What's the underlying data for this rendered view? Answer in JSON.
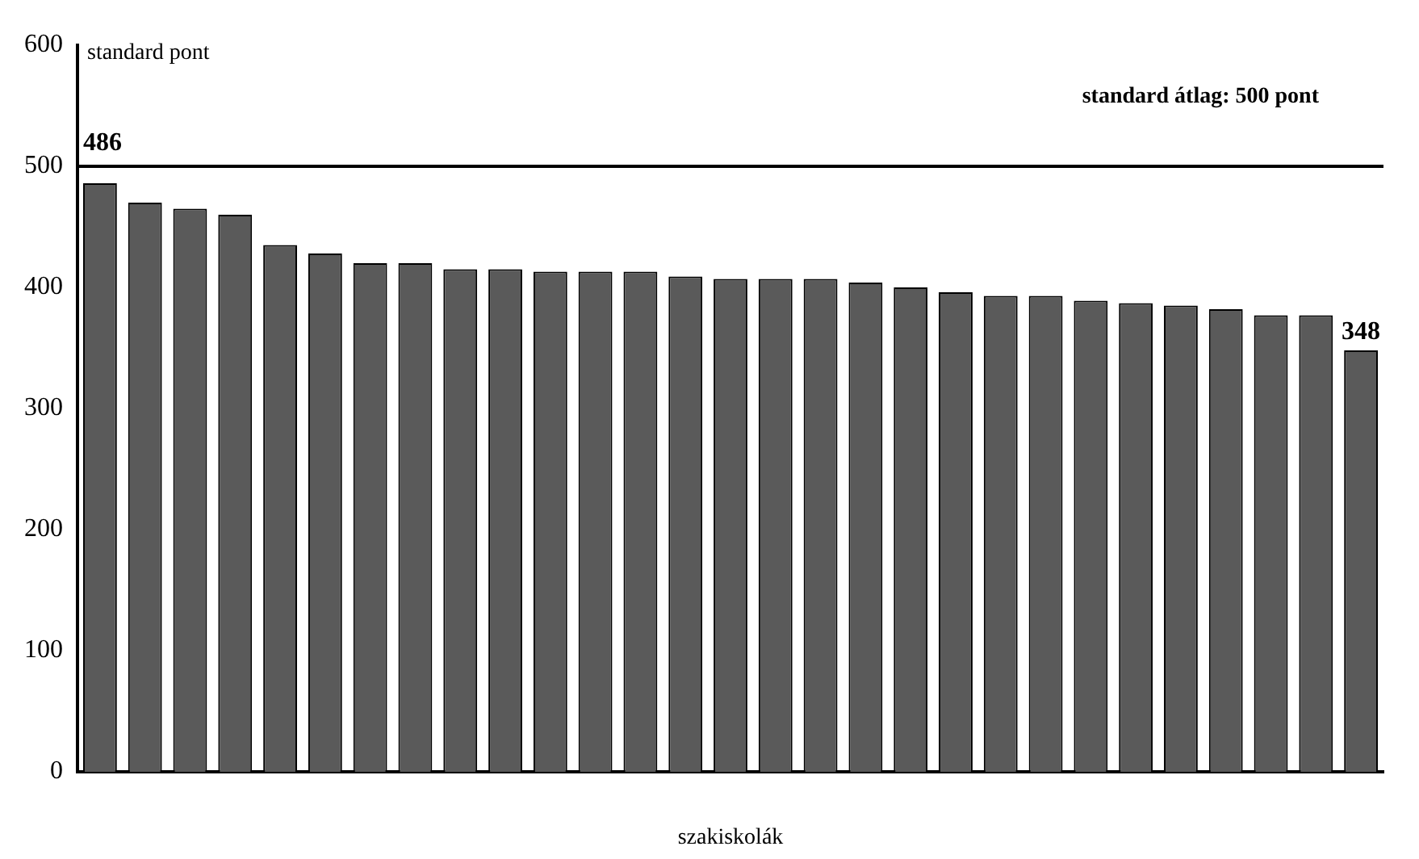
{
  "chart_data": {
    "type": "bar",
    "ylabel": "standard pont",
    "xlabel": "szakiskolák",
    "categories": [
      null,
      null,
      null,
      null,
      null,
      null,
      null,
      null,
      null,
      null,
      null,
      null,
      null,
      null,
      null,
      null,
      null,
      null,
      null,
      null,
      null,
      null,
      null,
      null,
      null,
      null,
      null,
      null,
      null
    ],
    "values": [
      486,
      470,
      465,
      460,
      435,
      428,
      420,
      420,
      415,
      415,
      413,
      413,
      413,
      409,
      407,
      407,
      407,
      404,
      400,
      396,
      393,
      393,
      389,
      387,
      385,
      382,
      377,
      377,
      348
    ],
    "value_labels": [
      "486",
      null,
      null,
      null,
      null,
      null,
      null,
      null,
      null,
      null,
      null,
      null,
      null,
      null,
      null,
      null,
      null,
      null,
      null,
      null,
      null,
      null,
      null,
      null,
      null,
      null,
      null,
      null,
      "348"
    ],
    "color": "#5a5a5a",
    "ylim": [
      0,
      600
    ],
    "yticks": [
      0,
      100,
      200,
      300,
      400,
      500,
      600
    ],
    "grid": false,
    "legend": false,
    "ref_lines": [
      {
        "axis": "y",
        "value": 500,
        "label": "standard átlag: 500 pont",
        "color": "#000000"
      }
    ]
  }
}
